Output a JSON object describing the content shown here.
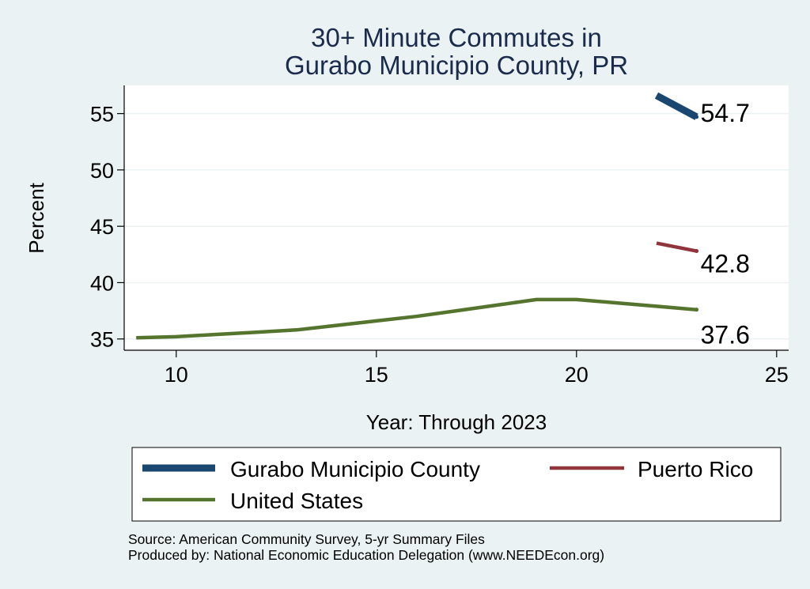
{
  "chart_data": {
    "type": "line",
    "title_lines": [
      "30+ Minute Commutes in",
      "Gurabo Municipio County, PR"
    ],
    "xlabel": "Year: Through 2023",
    "ylabel": "Percent",
    "xlim": [
      8.7,
      25.3
    ],
    "ylim": [
      34.0,
      57.5
    ],
    "xticks": [
      10,
      15,
      20,
      25
    ],
    "yticks": [
      35,
      40,
      45,
      50,
      55
    ],
    "grid": true,
    "series": [
      {
        "name": "Gurabo Municipio County",
        "color": "#1a476f",
        "width": 9,
        "x": [
          22,
          23
        ],
        "y": [
          56.6,
          54.7
        ],
        "end_label": "54.7"
      },
      {
        "name": "Puerto Rico",
        "color": "#90353b",
        "width": 4.5,
        "x": [
          22,
          23
        ],
        "y": [
          43.5,
          42.8
        ],
        "end_label": "42.8"
      },
      {
        "name": "United States",
        "color": "#55752f",
        "width": 4.5,
        "x": [
          9,
          10,
          11,
          12,
          13,
          14,
          15,
          16,
          17,
          18,
          19,
          20,
          21,
          22,
          23
        ],
        "y": [
          35.1,
          35.2,
          35.4,
          35.6,
          35.8,
          36.2,
          36.6,
          37.0,
          37.5,
          38.0,
          38.5,
          38.5,
          38.2,
          37.9,
          37.6
        ],
        "end_label": "37.6"
      }
    ],
    "legend": {
      "position": "bottom",
      "entries": [
        "Gurabo Municipio County",
        "Puerto Rico",
        "United States"
      ]
    },
    "notes": [
      "Source: American Community Survey, 5-yr Summary Files",
      "Produced by: National Economic Education Delegation (www.NEEDEcon.org)"
    ]
  }
}
